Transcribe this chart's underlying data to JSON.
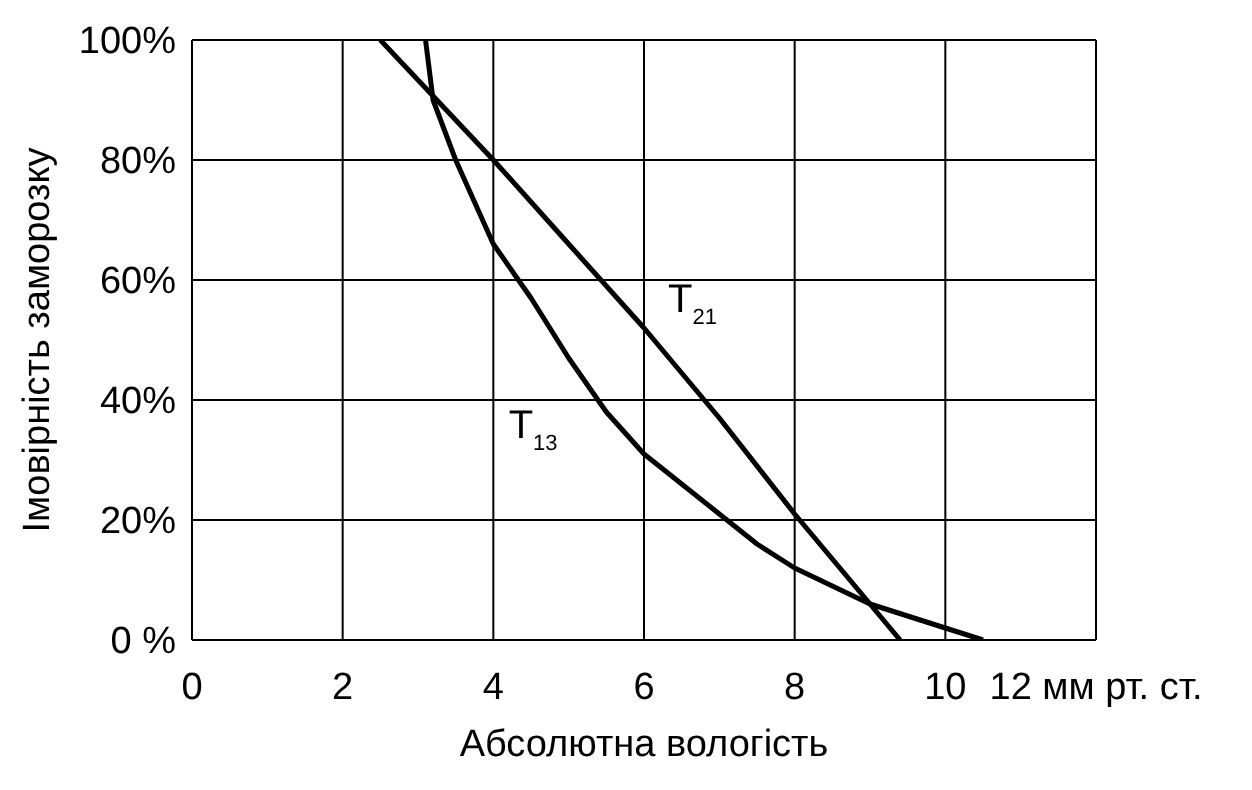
{
  "chart_data": {
    "type": "line",
    "xlabel": "Абсолютна вологість",
    "ylabel": "Імовірність заморозку",
    "xlim": [
      0,
      12
    ],
    "xticks": [
      0,
      2,
      4,
      6,
      8,
      10,
      {
        "value": 12,
        "label": "12 мм рт. ст."
      }
    ],
    "ylim": [
      0,
      100
    ],
    "yticks": [
      {
        "value": 0,
        "label": "0 %"
      },
      {
        "value": 20,
        "label": "20%"
      },
      {
        "value": 40,
        "label": "40%"
      },
      {
        "value": 60,
        "label": "60%"
      },
      {
        "value": 80,
        "label": "80%"
      },
      {
        "value": 100,
        "label": "100%"
      }
    ],
    "grid": true,
    "marker": "none",
    "line_style": "solid",
    "series": [
      {
        "name": "T$_{21}$",
        "color": "#000000",
        "x": [
          2.5,
          4,
          5,
          6,
          7,
          8,
          9,
          9.4
        ],
        "values": [
          100,
          80,
          66,
          52,
          37,
          21,
          6,
          0
        ]
      },
      {
        "name": "T$_{13}$",
        "color": "#000000",
        "x": [
          3.1,
          3.2,
          3.5,
          4,
          4.5,
          5,
          5.5,
          6,
          7,
          7.5,
          8,
          9,
          10,
          10.5
        ],
        "values": [
          100,
          90,
          80,
          66,
          57,
          47,
          38,
          31,
          21,
          16,
          12,
          6,
          2,
          0
        ]
      }
    ]
  }
}
